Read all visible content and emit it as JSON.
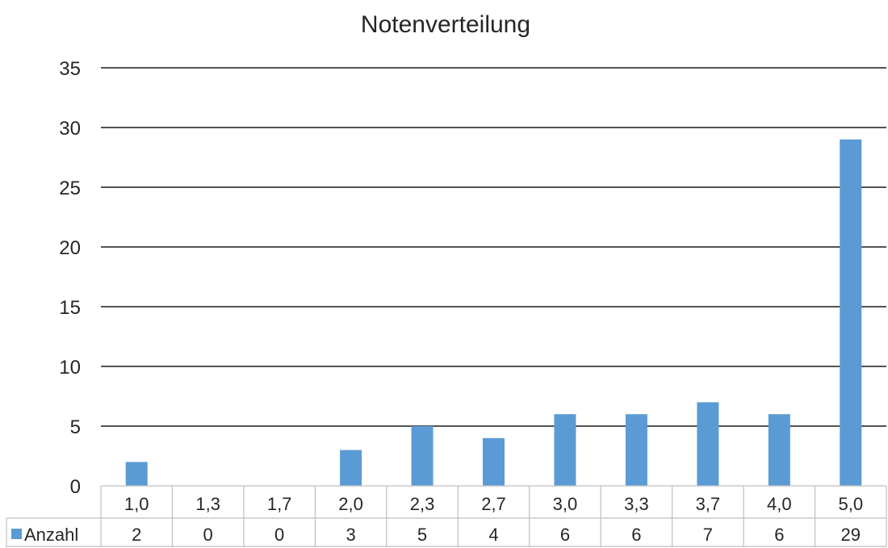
{
  "chart_data": {
    "type": "bar",
    "title": "Notenverteilung",
    "xlabel": "",
    "ylabel": "",
    "categories": [
      "1,0",
      "1,3",
      "1,7",
      "2,0",
      "2,3",
      "2,7",
      "3,0",
      "3,3",
      "3,7",
      "4,0",
      "5,0"
    ],
    "series": [
      {
        "name": "Anzahl",
        "values": [
          2,
          0,
          0,
          3,
          5,
          4,
          6,
          6,
          7,
          6,
          29
        ],
        "color": "#5b9bd5"
      }
    ],
    "ylim": [
      0,
      35
    ],
    "yticks": [
      "0",
      "5",
      "10",
      "15",
      "20",
      "25",
      "30",
      "35"
    ],
    "grid": true,
    "legend": "data-table-left",
    "data_table": true
  }
}
